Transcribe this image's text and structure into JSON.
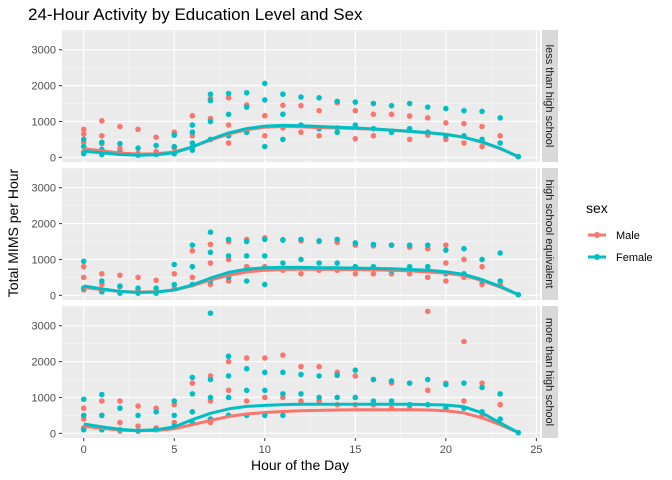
{
  "chart_data": {
    "type": "scatter",
    "title": "24-Hour Activity by Education Level and Sex",
    "xlabel": "Hour of the Day",
    "ylabel": "Total MIMS per Hour",
    "xlim": [
      -1.2,
      25.2
    ],
    "ylim": [
      -130,
      3550
    ],
    "x_ticks": [
      0,
      5,
      10,
      15,
      20,
      25
    ],
    "y_ticks": [
      0,
      1000,
      2000,
      3000
    ],
    "grid": true,
    "legend": {
      "title": "sex",
      "position": "right",
      "entries": [
        {
          "label": "Male",
          "color": "#F8766D"
        },
        {
          "label": "Female",
          "color": "#00BFC4"
        }
      ]
    },
    "panels": [
      {
        "label": "less than high school",
        "smooth": {
          "x": [
            0,
            1,
            2,
            3,
            4,
            5,
            6,
            7,
            8,
            9,
            10,
            11,
            12,
            13,
            14,
            15,
            16,
            17,
            18,
            19,
            20,
            21,
            22,
            23,
            24
          ],
          "Male": [
            240,
            180,
            120,
            90,
            100,
            150,
            290,
            480,
            650,
            770,
            840,
            860,
            850,
            830,
            820,
            800,
            790,
            760,
            720,
            680,
            640,
            560,
            420,
            240,
            20
          ],
          "Female": [
            170,
            130,
            80,
            60,
            70,
            130,
            290,
            500,
            680,
            800,
            870,
            890,
            880,
            860,
            840,
            820,
            790,
            760,
            730,
            690,
            640,
            560,
            430,
            250,
            20
          ]
        },
        "points": {
          "Male": {
            "x": [
              0,
              0,
              0,
              0,
              1,
              1,
              1,
              2,
              2,
              2,
              3,
              3,
              4,
              4,
              5,
              5,
              6,
              6,
              6,
              7,
              7,
              7,
              8,
              8,
              8,
              9,
              9,
              10,
              10,
              11,
              11,
              12,
              12,
              13,
              13,
              14,
              14,
              15,
              15,
              16,
              16,
              17,
              18,
              18,
              19,
              19,
              20,
              20,
              21,
              21,
              22,
              22,
              23,
              24
            ],
            "y": [
              780,
              650,
              420,
              150,
              1020,
              600,
              380,
              860,
              250,
              180,
              780,
              120,
              560,
              160,
              700,
              260,
              1160,
              600,
              280,
              1640,
              1080,
              500,
              1660,
              900,
              400,
              1460,
              700,
              1160,
              600,
              1450,
              820,
              1440,
              700,
              1300,
              600,
              1520,
              820,
              1300,
              520,
              1200,
              600,
              1200,
              1150,
              500,
              1100,
              620,
              960,
              500,
              940,
              400,
              860,
              300,
              600,
              20
            ]
          },
          "Female": {
            "x": [
              0,
              0,
              0,
              1,
              1,
              1,
              2,
              2,
              3,
              3,
              4,
              4,
              5,
              5,
              5,
              6,
              6,
              6,
              6,
              7,
              7,
              7,
              7,
              8,
              8,
              8,
              9,
              9,
              9,
              10,
              10,
              10,
              11,
              11,
              11,
              12,
              12,
              13,
              13,
              14,
              14,
              15,
              15,
              16,
              16,
              17,
              17,
              18,
              18,
              19,
              19,
              20,
              20,
              21,
              21,
              22,
              22,
              23,
              23,
              24
            ],
            "y": [
              500,
              300,
              100,
              420,
              220,
              80,
              380,
              120,
              260,
              60,
              330,
              80,
              620,
              300,
              100,
              900,
              700,
              400,
              200,
              1760,
              1580,
              1000,
              500,
              1780,
              1200,
              600,
              1800,
              1400,
              700,
              2060,
              1600,
              300,
              1760,
              1200,
              500,
              1680,
              900,
              1660,
              800,
              1560,
              700,
              1540,
              900,
              1500,
              800,
              1440,
              700,
              1500,
              800,
              1400,
              700,
              1360,
              600,
              1300,
              600,
              1280,
              500,
              1100,
              400,
              20
            ]
          }
        }
      },
      {
        "label": "high school equivalent",
        "smooth": {
          "x": [
            0,
            1,
            2,
            3,
            4,
            5,
            6,
            7,
            8,
            9,
            10,
            11,
            12,
            13,
            14,
            15,
            16,
            17,
            18,
            19,
            20,
            21,
            22,
            23,
            24
          ],
          "Male": [
            220,
            160,
            110,
            90,
            100,
            150,
            270,
            430,
            560,
            650,
            700,
            720,
            730,
            730,
            720,
            720,
            710,
            700,
            680,
            650,
            620,
            550,
            410,
            230,
            20
          ],
          "Female": [
            260,
            180,
            110,
            80,
            90,
            150,
            290,
            480,
            640,
            730,
            770,
            780,
            780,
            770,
            770,
            760,
            750,
            740,
            720,
            700,
            660,
            580,
            440,
            250,
            20
          ]
        },
        "points": {
          "Male": {
            "x": [
              0,
              0,
              0,
              1,
              1,
              1,
              2,
              2,
              2,
              3,
              3,
              4,
              4,
              5,
              5,
              6,
              6,
              7,
              7,
              7,
              8,
              8,
              8,
              9,
              9,
              10,
              10,
              11,
              11,
              12,
              12,
              13,
              13,
              14,
              14,
              15,
              15,
              16,
              16,
              17,
              17,
              18,
              18,
              19,
              19,
              20,
              20,
              20,
              21,
              21,
              22,
              22,
              23,
              24
            ],
            "y": [
              800,
              500,
              150,
              600,
              300,
              100,
              560,
              240,
              80,
              500,
              140,
              420,
              120,
              600,
              200,
              1240,
              500,
              1420,
              900,
              300,
              1500,
              1000,
              400,
              1560,
              800,
              1600,
              800,
              1550,
              700,
              1520,
              600,
              1500,
              700,
              1480,
              700,
              1400,
              600,
              1380,
              600,
              1400,
              600,
              1340,
              600,
              1300,
              500,
              1400,
              900,
              400,
              1000,
              500,
              800,
              300,
              300,
              20
            ]
          },
          "Female": {
            "x": [
              0,
              0,
              1,
              1,
              2,
              2,
              3,
              3,
              4,
              4,
              5,
              5,
              6,
              6,
              6,
              7,
              7,
              7,
              8,
              8,
              8,
              9,
              9,
              9,
              10,
              10,
              10,
              11,
              11,
              12,
              12,
              13,
              13,
              14,
              14,
              15,
              15,
              16,
              16,
              17,
              17,
              18,
              18,
              19,
              19,
              20,
              20,
              21,
              21,
              22,
              22,
              23,
              23,
              24
            ],
            "y": [
              950,
              200,
              400,
              100,
              260,
              60,
              200,
              60,
              200,
              60,
              860,
              300,
              1400,
              800,
              300,
              1760,
              1200,
              400,
              1560,
              1100,
              500,
              1500,
              1100,
              400,
              1560,
              1100,
              300,
              1540,
              900,
              1560,
              1000,
              1520,
              900,
              1560,
              900,
              1460,
              800,
              1420,
              800,
              1400,
              700,
              1400,
              800,
              1400,
              800,
              1260,
              600,
              1300,
              600,
              1000,
              400,
              1180,
              400,
              20
            ]
          }
        }
      },
      {
        "label": "more than high school",
        "smooth": {
          "x": [
            0,
            1,
            2,
            3,
            4,
            5,
            6,
            7,
            8,
            9,
            10,
            11,
            12,
            13,
            14,
            15,
            16,
            17,
            18,
            19,
            20,
            21,
            22,
            23,
            24
          ],
          "Male": [
            200,
            140,
            90,
            70,
            80,
            130,
            240,
            360,
            470,
            540,
            580,
            610,
            630,
            640,
            650,
            660,
            660,
            660,
            660,
            650,
            630,
            570,
            430,
            240,
            20
          ],
          "Female": [
            260,
            180,
            110,
            80,
            100,
            180,
            380,
            560,
            680,
            750,
            780,
            800,
            810,
            810,
            810,
            810,
            810,
            810,
            810,
            800,
            790,
            740,
            570,
            290,
            20
          ]
        },
        "points": {
          "Male": {
            "x": [
              0,
              0,
              0,
              1,
              1,
              1,
              2,
              2,
              2,
              3,
              3,
              4,
              4,
              5,
              5,
              6,
              6,
              7,
              7,
              7,
              8,
              8,
              8,
              9,
              9,
              10,
              10,
              11,
              11,
              12,
              12,
              13,
              13,
              14,
              14,
              15,
              15,
              16,
              16,
              17,
              17,
              18,
              18,
              19,
              19,
              20,
              20,
              21,
              21,
              22,
              22,
              23,
              24
            ],
            "y": [
              700,
              400,
              150,
              900,
              500,
              100,
              900,
              300,
              60,
              760,
              200,
              700,
              150,
              800,
              300,
              1400,
              600,
              1600,
              900,
              300,
              2000,
              1200,
              500,
              2100,
              900,
              2100,
              1000,
              2180,
              1000,
              1860,
              900,
              1860,
              900,
              1700,
              800,
              1600,
              800,
              1500,
              800,
              1400,
              700,
              1400,
              700,
              3400,
              1200,
              1400,
              700,
              2560,
              900,
              1400,
              500,
              800,
              20
            ]
          },
          "Female": {
            "x": [
              0,
              0,
              0,
              1,
              1,
              1,
              2,
              2,
              3,
              3,
              4,
              4,
              5,
              5,
              5,
              6,
              6,
              6,
              6,
              7,
              7,
              7,
              7,
              8,
              8,
              8,
              8,
              9,
              9,
              9,
              10,
              10,
              10,
              11,
              11,
              11,
              12,
              12,
              13,
              13,
              14,
              14,
              15,
              15,
              16,
              16,
              17,
              17,
              18,
              18,
              19,
              19,
              20,
              20,
              21,
              21,
              22,
              22,
              23,
              23,
              24
            ],
            "y": [
              950,
              500,
              100,
              1080,
              500,
              100,
              700,
              100,
              500,
              60,
              600,
              100,
              900,
              500,
              200,
              1560,
              1100,
              600,
              300,
              3350,
              1500,
              1000,
              400,
              2150,
              1600,
              1000,
              500,
              1800,
              1200,
              500,
              1700,
              1200,
              500,
              1700,
              1100,
              500,
              1640,
              1100,
              1600,
              1000,
              1620,
              1000,
              1760,
              1000,
              1500,
              900,
              1460,
              900,
              1400,
              800,
              1500,
              800,
              1360,
              700,
              1400,
              700,
              1280,
              600,
              1100,
              400,
              20
            ]
          }
        }
      }
    ]
  }
}
